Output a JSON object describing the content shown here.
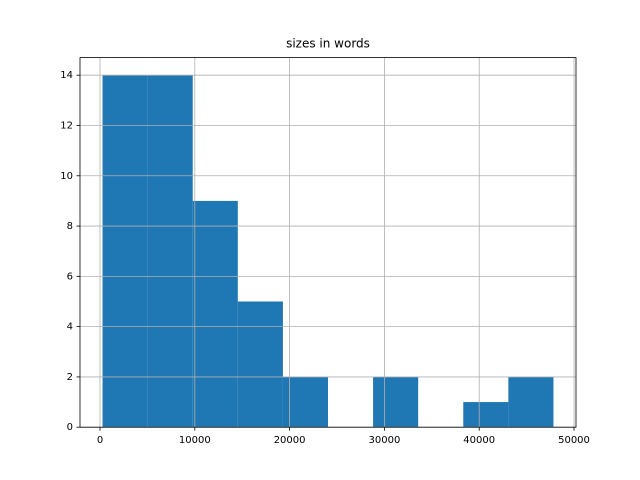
{
  "chart_data": {
    "type": "histogram",
    "title": "sizes in words",
    "bins": [
      268,
      5024,
      9781,
      14537,
      19294,
      24050,
      28806,
      33563,
      38319,
      43076,
      47832
    ],
    "values": [
      14,
      14,
      9,
      5,
      2,
      0,
      2,
      0,
      1,
      2
    ],
    "color": "#1f77b4",
    "xlim": [
      -2110,
      50210
    ],
    "xticks": [
      0,
      10000,
      20000,
      30000,
      40000,
      50000
    ],
    "ylim": [
      0,
      14.7
    ],
    "yticks": [
      0,
      2,
      4,
      6,
      8,
      10,
      12,
      14
    ],
    "grid": true
  }
}
